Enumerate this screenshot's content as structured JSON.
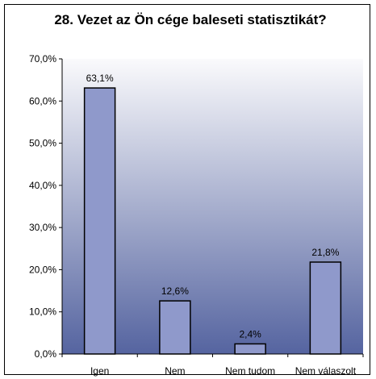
{
  "chart_data": {
    "type": "bar",
    "title": "28. Vezet az Ön cége baleseti statisztikát?",
    "categories": [
      "Igen",
      "Nem",
      "Nem tudom",
      "Nem válaszolt"
    ],
    "values": [
      63.1,
      12.6,
      2.4,
      21.8
    ],
    "data_labels": [
      "63,1%",
      "12,6%",
      "2,4%",
      "21,8%"
    ],
    "ylim": [
      0,
      70
    ],
    "yticks": [
      0,
      10,
      20,
      30,
      40,
      50,
      60,
      70
    ],
    "ytick_labels": [
      "0,0%",
      "10,0%",
      "20,0%",
      "30,0%",
      "40,0%",
      "50,0%",
      "60,0%",
      "70,0%"
    ],
    "xlabel": "",
    "ylabel": "",
    "grid": false,
    "legend": "none",
    "colors": {
      "bar_fill": "#8f99cb",
      "bar_stroke": "#000000",
      "plot_bg_top": "#fafafc",
      "plot_bg_bottom": "#5564a0",
      "axis": "#000000"
    }
  }
}
